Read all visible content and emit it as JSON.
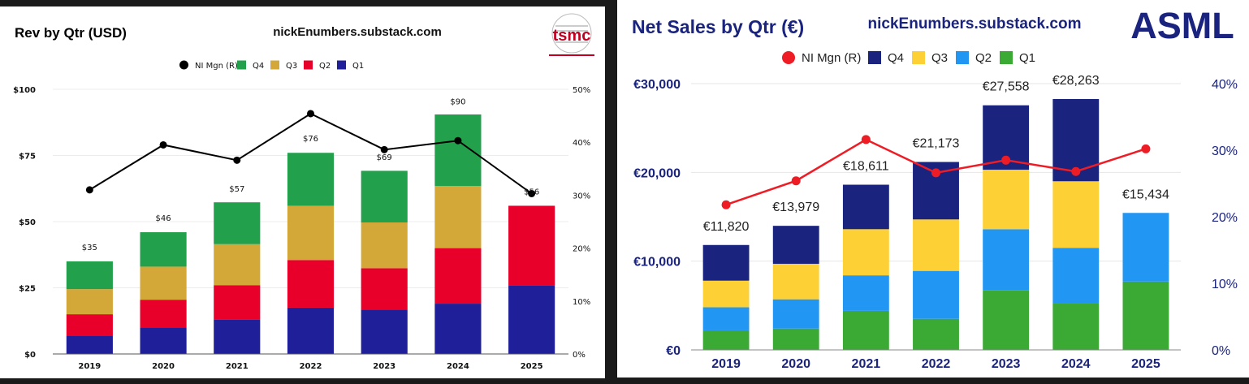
{
  "chart_data": [
    {
      "id": "tsmc",
      "type": "bar",
      "stacked": true,
      "title": "Rev by Qtr (USD)",
      "source": "nickEnumbers.substack.com",
      "logo_text": "tsmc",
      "categories": [
        "2019",
        "2020",
        "2021",
        "2022",
        "2023",
        "2024",
        "2025"
      ],
      "totals": [
        35,
        46,
        57,
        76,
        69,
        90,
        56
      ],
      "total_labels": [
        "$35",
        "$46",
        "$57",
        "$76",
        "$69",
        "$90",
        "$56"
      ],
      "series": [
        {
          "name": "Q1",
          "color": "#1f1f99",
          "values": [
            7,
            10,
            13,
            17.5,
            16.7,
            19,
            26
          ]
        },
        {
          "name": "Q2",
          "color": "#e8002a",
          "values": [
            8,
            10.5,
            13,
            18,
            15.7,
            21,
            30
          ]
        },
        {
          "name": "Q3",
          "color": "#d4a838",
          "values": [
            9.5,
            12.5,
            15.5,
            20.5,
            17.3,
            23.5,
            0
          ]
        },
        {
          "name": "Q4",
          "color": "#22a04b",
          "values": [
            10.5,
            13,
            15.8,
            20,
            19.5,
            27,
            0
          ]
        }
      ],
      "line": {
        "name": "NI Mgn (R)",
        "color": "#000000",
        "values": [
          31,
          39.5,
          36.6,
          45.4,
          38.6,
          40.3,
          30.3
        ]
      },
      "legend_order": [
        "NI Mgn (R)",
        "Q4",
        "Q3",
        "Q2",
        "Q1"
      ],
      "ylim": [
        0,
        100
      ],
      "y_ticks": [
        0,
        25,
        50,
        75,
        100
      ],
      "y_tick_labels": [
        "$0",
        "$25",
        "$50",
        "$75",
        "$100"
      ],
      "y2lim": [
        0,
        50
      ],
      "y2_ticks": [
        0,
        10,
        20,
        30,
        40,
        50
      ],
      "y2_tick_labels": [
        "0%",
        "10%",
        "20%",
        "30%",
        "40%",
        "50%"
      ],
      "title_color": "#c00020"
    },
    {
      "id": "asml",
      "type": "bar",
      "stacked": true,
      "title": "Net Sales by Qtr (€)",
      "source": "nickEnumbers.substack.com",
      "logo_text": "ASML",
      "categories": [
        "2019",
        "2020",
        "2021",
        "2022",
        "2023",
        "2024",
        "2025"
      ],
      "totals": [
        11820,
        13979,
        18611,
        21173,
        27558,
        28263,
        15434
      ],
      "total_labels": [
        "€11,820",
        "€13,979",
        "€18,611",
        "€21,173",
        "€27,558",
        "€28,263",
        "€15,434"
      ],
      "series": [
        {
          "name": "Q1",
          "color": "#3aaa35",
          "values": [
            2200,
            2400,
            4400,
            3500,
            6700,
            5300,
            7700
          ]
        },
        {
          "name": "Q2",
          "color": "#2196f3",
          "values": [
            2600,
            3300,
            4000,
            5400,
            6900,
            6200,
            7734
          ]
        },
        {
          "name": "Q3",
          "color": "#fdd035",
          "values": [
            3000,
            4000,
            5200,
            5800,
            6700,
            7500,
            0
          ]
        },
        {
          "name": "Q4",
          "color": "#1a237e",
          "values": [
            4020,
            4279,
            5011,
            6473,
            7258,
            9263,
            0
          ]
        }
      ],
      "line": {
        "name": "NI Mgn (R)",
        "color": "#ee1c25",
        "values": [
          21.8,
          25.4,
          31.6,
          26.6,
          28.5,
          26.8,
          30.2
        ]
      },
      "legend_order": [
        "NI Mgn (R)",
        "Q4",
        "Q3",
        "Q2",
        "Q1"
      ],
      "ylim": [
        0,
        30000
      ],
      "y_ticks": [
        0,
        10000,
        20000,
        30000
      ],
      "y_tick_labels": [
        "€0",
        "€10,000",
        "€20,000",
        "€30,000"
      ],
      "y2lim": [
        0,
        40
      ],
      "y2_ticks": [
        0,
        10,
        20,
        30,
        40
      ],
      "y2_tick_labels": [
        "0%",
        "10%",
        "20%",
        "30%",
        "40%"
      ],
      "title_color": "#1a237e"
    }
  ]
}
